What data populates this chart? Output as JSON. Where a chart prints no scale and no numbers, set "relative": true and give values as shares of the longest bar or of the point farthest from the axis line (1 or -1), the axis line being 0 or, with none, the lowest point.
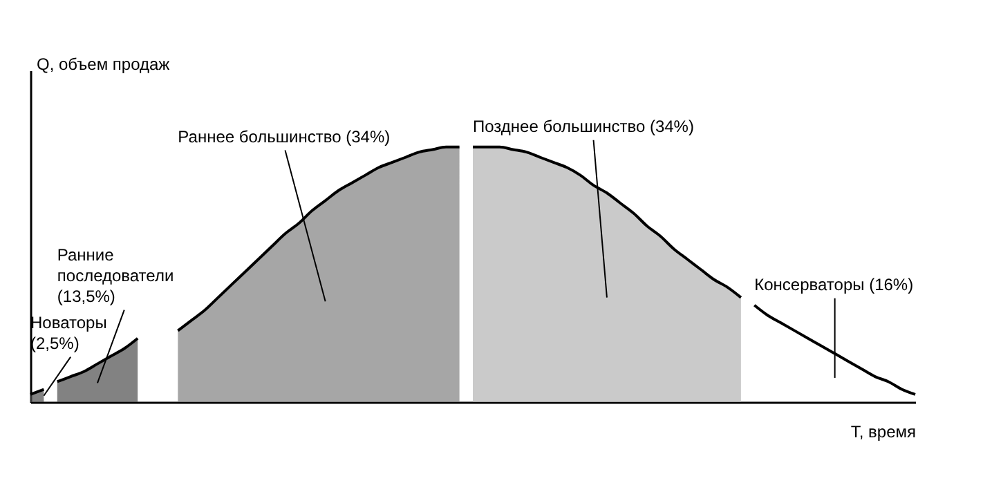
{
  "chart_data": {
    "type": "area",
    "relative": true,
    "xlabel": "T, время",
    "ylabel": "Q, объем продаж",
    "categories": [
      null,
      null,
      null,
      null,
      null,
      null,
      null,
      null,
      null,
      null,
      null,
      null,
      null,
      null,
      null,
      null,
      null,
      null,
      null,
      null,
      null,
      null,
      null,
      null,
      null,
      null,
      null,
      null,
      null,
      null,
      null,
      null,
      null,
      null,
      null,
      null,
      null,
      null,
      null,
      null,
      null,
      null,
      null,
      null,
      null,
      null,
      null,
      null,
      null,
      null,
      null,
      null,
      null,
      null,
      null,
      null,
      null,
      null,
      null,
      null,
      null,
      null,
      null,
      null,
      null,
      null,
      null
    ],
    "series": [
      {
        "name": "Новаторы (2,5%)",
        "color": "#4d4d4d",
        "values": [
          0.03,
          0.05,
          null,
          null,
          null,
          null,
          null,
          null,
          null,
          null,
          null,
          null,
          null,
          null,
          null,
          null,
          null,
          null,
          null,
          null,
          null,
          null,
          null,
          null,
          null,
          null,
          null,
          null,
          null,
          null,
          null,
          null,
          null,
          null,
          null,
          null,
          null,
          null,
          null,
          null,
          null,
          null,
          null,
          null,
          null,
          null,
          null,
          null,
          null,
          null,
          null,
          null,
          null,
          null,
          null,
          null,
          null,
          null,
          null,
          null,
          null,
          null,
          null,
          null,
          null,
          null,
          null
        ]
      },
      {
        "name": "Ранние последователи (13,5%)",
        "color": "#4d4d4d",
        "values": [
          null,
          null,
          0.08,
          0.1,
          0.12,
          0.15,
          0.18,
          0.21,
          0.25,
          null,
          null,
          null,
          null,
          null,
          null,
          null,
          null,
          null,
          null,
          null,
          null,
          null,
          null,
          null,
          null,
          null,
          null,
          null,
          null,
          null,
          null,
          null,
          null,
          null,
          null,
          null,
          null,
          null,
          null,
          null,
          null,
          null,
          null,
          null,
          null,
          null,
          null,
          null,
          null,
          null,
          null,
          null,
          null,
          null,
          null,
          null,
          null,
          null,
          null,
          null,
          null,
          null,
          null,
          null,
          null,
          null,
          null
        ]
      },
      {
        "name": "Раннее большинство (34%)",
        "color": "#808080",
        "values": [
          null,
          null,
          null,
          null,
          null,
          null,
          null,
          null,
          null,
          null,
          null,
          0.28,
          0.32,
          0.36,
          0.41,
          0.46,
          0.51,
          0.56,
          0.61,
          0.66,
          0.7,
          0.75,
          0.79,
          0.83,
          0.86,
          0.89,
          0.92,
          0.94,
          0.96,
          0.98,
          0.99,
          1.0,
          1.0,
          null,
          null,
          null,
          null,
          null,
          null,
          null,
          null,
          null,
          null,
          null,
          null,
          null,
          null,
          null,
          null,
          null,
          null,
          null,
          null,
          null,
          null,
          null,
          null,
          null,
          null,
          null,
          null,
          null,
          null,
          null,
          null,
          null,
          null
        ]
      },
      {
        "name": "Позднее большинство (34%)",
        "color": "#b3b3b3",
        "values": [
          null,
          null,
          null,
          null,
          null,
          null,
          null,
          null,
          null,
          null,
          null,
          null,
          null,
          null,
          null,
          null,
          null,
          null,
          null,
          null,
          null,
          null,
          null,
          null,
          null,
          null,
          null,
          null,
          null,
          null,
          null,
          null,
          null,
          1.0,
          1.0,
          1.0,
          0.99,
          0.98,
          0.96,
          0.94,
          0.92,
          0.89,
          0.85,
          0.82,
          0.78,
          0.74,
          0.69,
          0.65,
          0.6,
          0.56,
          0.52,
          0.48,
          0.45,
          0.41,
          null,
          null,
          null,
          null,
          null,
          null,
          null,
          null,
          null,
          null,
          null,
          null,
          null
        ]
      },
      {
        "name": "Консерваторы (16%)",
        "type": "line",
        "color": "#000000",
        "values": [
          null,
          null,
          null,
          null,
          null,
          null,
          null,
          null,
          null,
          null,
          null,
          null,
          null,
          null,
          null,
          null,
          null,
          null,
          null,
          null,
          null,
          null,
          null,
          null,
          null,
          null,
          null,
          null,
          null,
          null,
          null,
          null,
          null,
          null,
          null,
          null,
          null,
          null,
          null,
          null,
          null,
          null,
          null,
          null,
          null,
          null,
          null,
          null,
          null,
          null,
          null,
          null,
          null,
          null,
          0.38,
          0.34,
          0.31,
          0.28,
          0.25,
          0.22,
          0.19,
          0.16,
          0.13,
          0.1,
          0.08,
          0.05,
          0.03
        ]
      }
    ]
  }
}
